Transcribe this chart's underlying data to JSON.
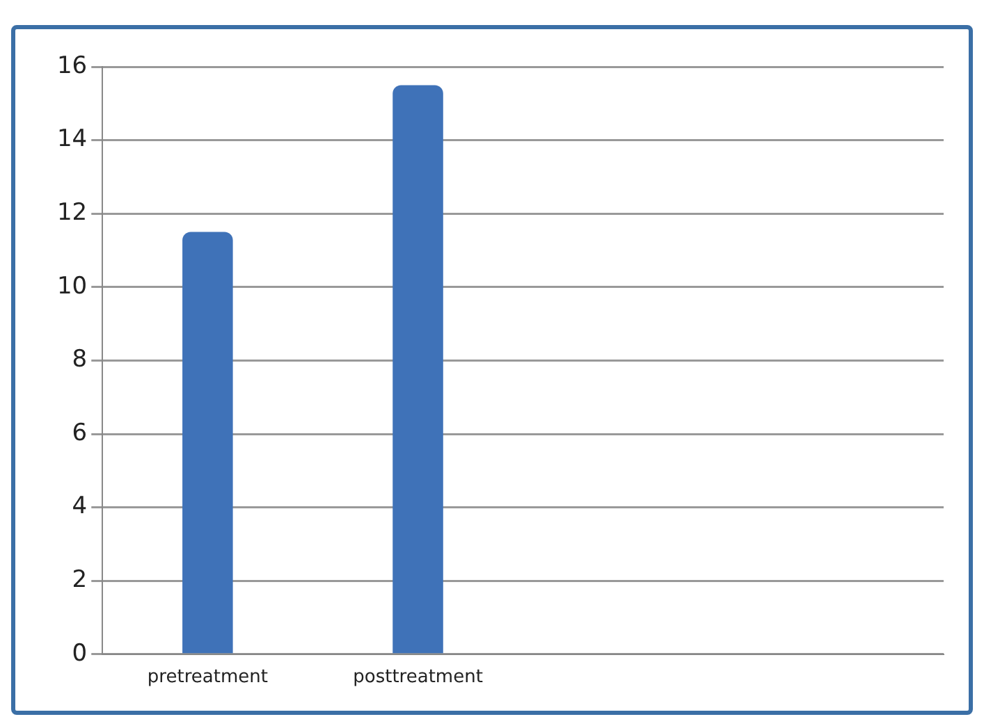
{
  "chart_data": {
    "type": "bar",
    "categories": [
      "pretreatment",
      "posttreatment",
      null,
      null
    ],
    "values": [
      11.5,
      15.5,
      null,
      null
    ],
    "color": "#3f72b8",
    "ylim": [
      0,
      16
    ],
    "yticks": [
      0,
      2,
      4,
      6,
      8,
      10,
      12,
      14,
      16
    ],
    "grid": "y"
  }
}
